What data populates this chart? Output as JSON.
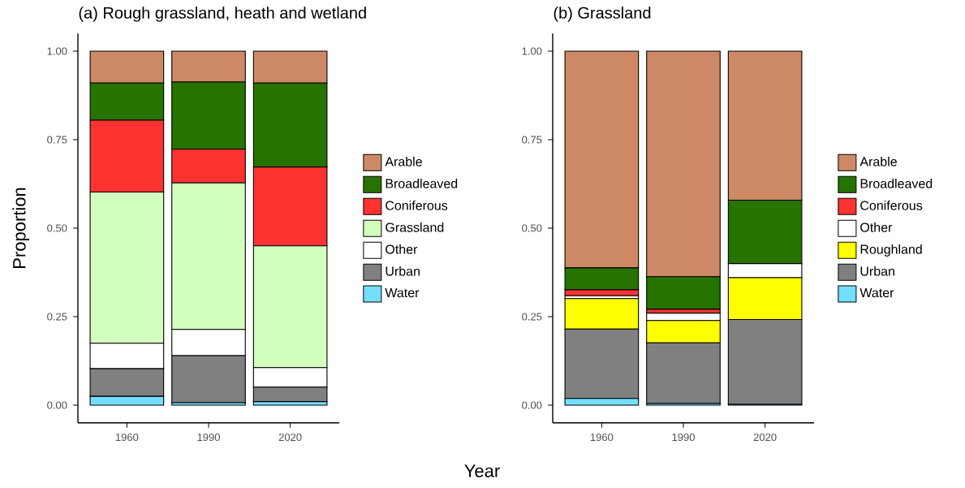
{
  "chart_data": [
    {
      "type": "bar",
      "stacked": true,
      "title": "(a) Rough grassland, heath and wetland",
      "ylabel": "Proportion",
      "legend": "right",
      "categories": [
        "1960",
        "1990",
        "2020"
      ],
      "ylim": [
        -0.05,
        1.05
      ],
      "yticks": [
        {
          "value": 0,
          "label": "0.00"
        },
        {
          "value": 0.25,
          "label": "0.25"
        },
        {
          "value": 0.5,
          "label": "0.50"
        },
        {
          "value": 0.75,
          "label": "0.75"
        },
        {
          "value": 1,
          "label": "1.00"
        }
      ],
      "series": [
        {
          "name": "Water",
          "color": "#73dfff",
          "values": [
            0.025,
            0.007,
            0.01
          ]
        },
        {
          "name": "Urban",
          "color": "#808080",
          "values": [
            0.078,
            0.133,
            0.041
          ]
        },
        {
          "name": "Other",
          "color": "#ffffff",
          "values": [
            0.072,
            0.074,
            0.055
          ]
        },
        {
          "name": "Grassland",
          "color": "#d3ffbe",
          "values": [
            0.427,
            0.414,
            0.344
          ]
        },
        {
          "name": "Coniferous",
          "color": "#ff3232",
          "values": [
            0.203,
            0.095,
            0.223
          ]
        },
        {
          "name": "Broadleaved",
          "color": "#267300",
          "values": [
            0.105,
            0.19,
            0.237
          ]
        },
        {
          "name": "Arable",
          "color": "#cd8966",
          "values": [
            0.09,
            0.087,
            0.09
          ]
        }
      ]
    },
    {
      "type": "bar",
      "stacked": true,
      "title": "(b) Grassland",
      "xlabel": "Year",
      "legend": "right",
      "categories": [
        "1960",
        "1990",
        "2020"
      ],
      "ylim": [
        -0.05,
        1.05
      ],
      "yticks": [
        {
          "value": 0,
          "label": "0.00"
        },
        {
          "value": 0.25,
          "label": "0.25"
        },
        {
          "value": 0.5,
          "label": "0.50"
        },
        {
          "value": 0.75,
          "label": "0.75"
        },
        {
          "value": 1,
          "label": "1.00"
        }
      ],
      "series": [
        {
          "name": "Water",
          "color": "#73dfff",
          "values": [
            0.019,
            0.005,
            0.003
          ]
        },
        {
          "name": "Urban",
          "color": "#808080",
          "values": [
            0.196,
            0.171,
            0.239
          ]
        },
        {
          "name": "Roughland",
          "color": "#ffff00",
          "values": [
            0.086,
            0.063,
            0.118
          ]
        },
        {
          "name": "Other",
          "color": "#ffffff",
          "values": [
            0.008,
            0.021,
            0.04
          ]
        },
        {
          "name": "Coniferous",
          "color": "#ff3232",
          "values": [
            0.017,
            0.011,
            0.0
          ]
        },
        {
          "name": "Broadleaved",
          "color": "#267300",
          "values": [
            0.062,
            0.092,
            0.179
          ]
        },
        {
          "name": "Arable",
          "color": "#cd8966",
          "values": [
            0.612,
            0.637,
            0.421
          ]
        }
      ]
    }
  ]
}
